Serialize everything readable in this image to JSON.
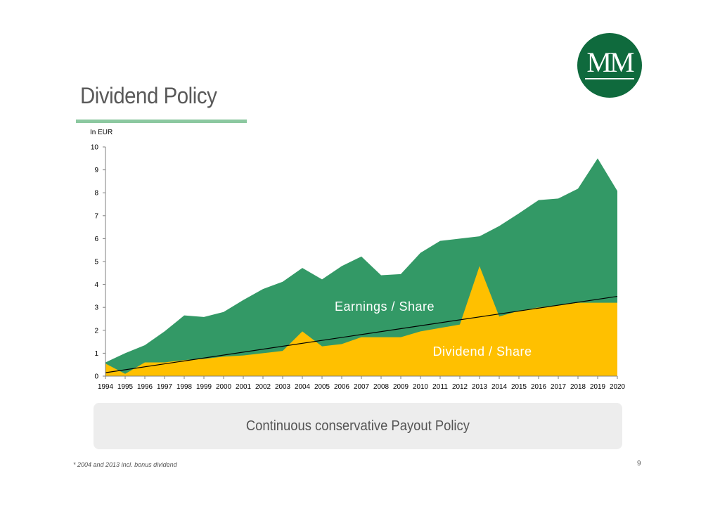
{
  "header": {
    "title": "Dividend Policy",
    "logo_text": "MM"
  },
  "chart_data": {
    "type": "area",
    "unit_label": "In EUR",
    "ylim": [
      0,
      10
    ],
    "yticks": [
      0,
      1,
      2,
      3,
      4,
      5,
      6,
      7,
      8,
      9,
      10
    ],
    "categories": [
      "1994",
      "1995",
      "1996",
      "1997",
      "1998",
      "1999",
      "2000",
      "2001",
      "2002",
      "2003",
      "2004",
      "2005",
      "2006",
      "2007",
      "2008",
      "2009",
      "2010",
      "2011",
      "2012",
      "2013",
      "2014",
      "2015",
      "2016",
      "2017",
      "2018",
      "2019",
      "2020"
    ],
    "series": [
      {
        "name": "Earnings / Share",
        "label": "Earnings / Share",
        "color": "#339966",
        "values": [
          0.6,
          1.0,
          1.35,
          1.95,
          2.65,
          2.58,
          2.8,
          3.32,
          3.8,
          4.12,
          4.72,
          4.22,
          4.8,
          5.22,
          4.4,
          4.45,
          5.38,
          5.9,
          6.0,
          6.1,
          6.55,
          7.1,
          7.68,
          7.75,
          8.18,
          9.5,
          8.08
        ]
      },
      {
        "name": "Dividend / Share",
        "label": "Dividend / Share",
        "color": "#ffc000",
        "values": [
          0.55,
          0.1,
          0.6,
          0.6,
          0.7,
          0.75,
          0.85,
          0.9,
          1.0,
          1.1,
          1.95,
          1.3,
          1.4,
          1.7,
          1.7,
          1.7,
          1.95,
          2.1,
          2.25,
          4.8,
          2.6,
          2.85,
          3.0,
          3.1,
          3.2,
          3.2,
          3.2
        ]
      }
    ],
    "trendline": {
      "color": "#000000",
      "start_value": 0.15,
      "end_value": 3.48
    }
  },
  "banner": {
    "text": "Continuous conservative Payout Policy"
  },
  "footer": {
    "footnote": "* 2004 and 2013 incl. bonus dividend",
    "page_number": "9"
  }
}
